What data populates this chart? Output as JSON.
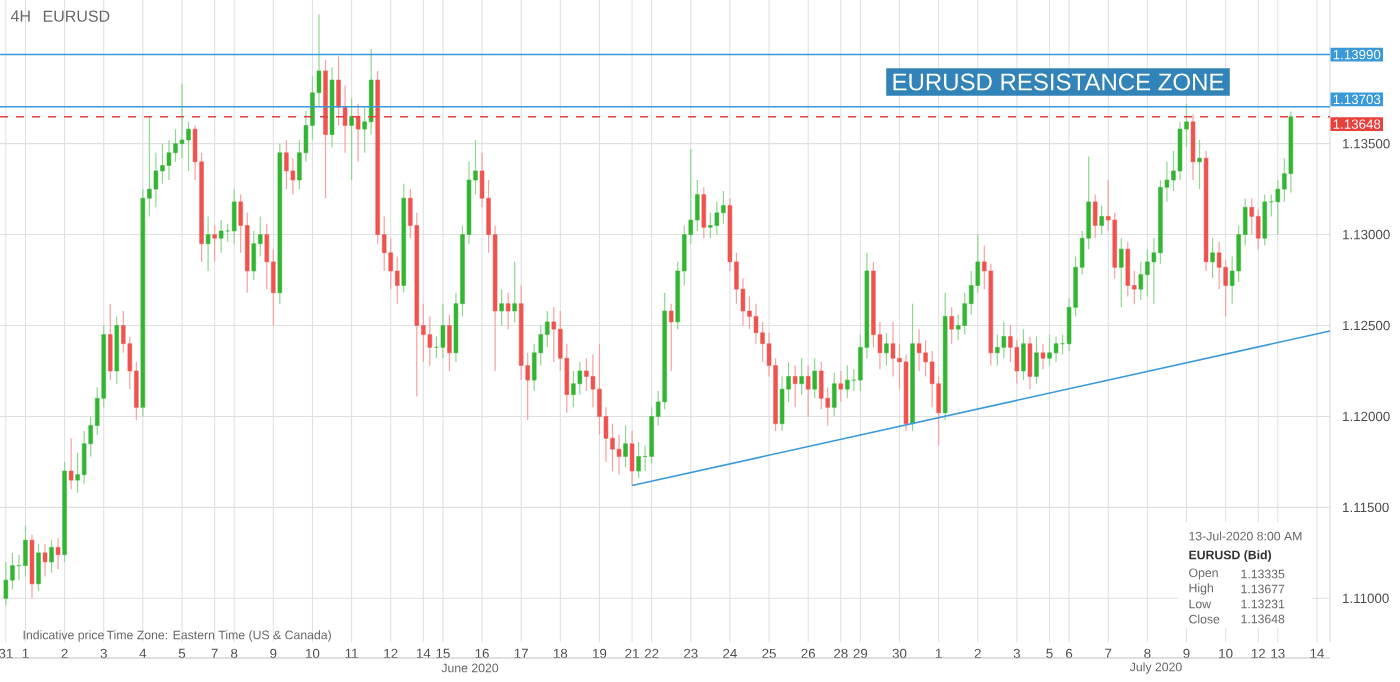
{
  "chart_data": {
    "type": "candlestick",
    "title": "EURUSD",
    "subtitle": "4H",
    "categories": [
      "31",
      null,
      null,
      "1",
      null,
      null,
      null,
      null,
      null,
      "2",
      null,
      null,
      null,
      null,
      null,
      "3",
      null,
      null,
      null,
      null,
      null,
      "4",
      null,
      null,
      null,
      null,
      null,
      "5",
      null,
      null,
      null,
      null,
      "7",
      null,
      null,
      "8",
      null,
      null,
      null,
      null,
      null,
      "9",
      null,
      null,
      null,
      null,
      null,
      "10",
      null,
      null,
      null,
      null,
      null,
      "11",
      null,
      null,
      null,
      null,
      null,
      "12",
      null,
      null,
      null,
      null,
      "14",
      null,
      null,
      "15",
      null,
      null,
      null,
      null,
      null,
      "16",
      null,
      null,
      null,
      null,
      null,
      "17",
      null,
      null,
      null,
      null,
      null,
      "18",
      null,
      null,
      null,
      null,
      null,
      "19",
      null,
      null,
      null,
      null,
      "21",
      null,
      null,
      "22",
      null,
      null,
      null,
      null,
      null,
      "23",
      null,
      null,
      null,
      null,
      null,
      "24",
      null,
      null,
      null,
      null,
      null,
      "25",
      null,
      null,
      null,
      null,
      null,
      "26",
      null,
      null,
      null,
      null,
      "28",
      null,
      null,
      "29",
      null,
      null,
      null,
      null,
      null,
      "30",
      null,
      null,
      null,
      null,
      null,
      "1",
      null,
      null,
      null,
      null,
      null,
      "2",
      null,
      null,
      null,
      null,
      null,
      "3",
      null,
      null,
      null,
      null,
      "5",
      null,
      null,
      "6",
      null,
      null,
      null,
      null,
      null,
      "7",
      null,
      null,
      null,
      null,
      null,
      "8",
      null,
      null,
      null,
      null,
      null,
      "9",
      null,
      null,
      null,
      null,
      null,
      "10",
      null,
      null,
      null,
      null,
      "12",
      null,
      null,
      "13",
      null,
      null,
      null,
      null,
      null,
      "14",
      null,
      null
    ],
    "colors": [
      "#33b533",
      "#33b533",
      "#33b533",
      "#33b533",
      "#ef5350",
      "#33b533",
      "#ef5350",
      "#33b533",
      "#ef5350",
      "#33b533",
      "#ef5350",
      "#33b533",
      "#33b533",
      "#33b533",
      "#33b533",
      "#33b533",
      "#ef5350",
      "#33b533",
      "#ef5350",
      "#ef5350",
      "#ef5350",
      "#33b533",
      "#33b533",
      "#33b533",
      "#33b533",
      "#33b533",
      "#33b533",
      "#33b533",
      "#33b533",
      "#ef5350",
      "#ef5350",
      "#33b533",
      "#ef5350",
      "#33b533",
      "#33b533",
      "#33b533",
      "#ef5350",
      "#ef5350",
      "#33b533",
      "#33b533",
      "#ef5350",
      "#ef5350",
      "#33b533",
      "#ef5350",
      "#ef5350",
      "#33b533",
      "#33b533",
      "#33b533",
      "#33b533",
      "#ef5350",
      "#33b533",
      "#ef5350",
      "#ef5350",
      "#33b533",
      "#ef5350",
      "#33b533",
      "#33b533",
      "#ef5350",
      "#ef5350",
      "#ef5350",
      "#ef5350",
      "#33b533",
      "#ef5350",
      "#ef5350",
      "#ef5350",
      "#ef5350",
      "#33b533",
      "#33b533",
      "#ef5350",
      "#33b533",
      "#33b533",
      "#33b533",
      "#33b533",
      "#ef5350",
      "#ef5350",
      "#ef5350",
      "#33b533",
      "#ef5350",
      "#33b533",
      "#ef5350",
      "#ef5350",
      "#33b533",
      "#33b533",
      "#33b533",
      "#ef5350",
      "#ef5350",
      "#ef5350",
      "#33b533",
      "#33b533",
      "#ef5350",
      "#ef5350",
      "#ef5350",
      "#ef5350",
      "#ef5350",
      "#ef5350",
      "#33b533",
      "#ef5350",
      "#33b533",
      "#33b533",
      "#33b533",
      "#33b533",
      "#33b533",
      "#ef5350",
      "#33b533",
      "#33b533",
      "#33b533",
      "#33b533",
      "#ef5350",
      "#33b533",
      "#33b533",
      "#33b533",
      "#ef5350",
      "#ef5350",
      "#ef5350",
      "#ef5350",
      "#ef5350",
      "#ef5350",
      "#ef5350",
      "#ef5350",
      "#33b533",
      "#33b533",
      "#ef5350",
      "#33b533",
      "#ef5350",
      "#33b533",
      "#ef5350",
      "#ef5350",
      "#33b533",
      "#ef5350",
      "#33b533",
      "#33b533",
      "#33b533",
      "#33b533",
      "#ef5350",
      "#ef5350",
      "#33b533",
      "#ef5350",
      "#ef5350",
      "#ef5350",
      "#33b533",
      "#ef5350",
      "#ef5350",
      "#ef5350",
      "#ef5350",
      "#33b533",
      "#ef5350",
      "#33b533",
      "#33b533",
      "#33b533",
      "#33b533",
      "#ef5350",
      "#ef5350",
      "#33b533",
      "#33b533",
      "#ef5350",
      "#ef5350",
      "#33b533",
      "#ef5350",
      "#33b533",
      "#ef5350",
      "#33b533",
      "#33b533",
      "#33b533",
      "#33b533",
      "#33b533",
      "#33b533",
      "#33b533",
      "#ef5350",
      "#33b533",
      "#ef5350",
      "#ef5350",
      "#33b533",
      "#ef5350",
      "#ef5350",
      "#33b533",
      "#33b533",
      "#33b533",
      "#33b533",
      "#33b533",
      "#33b533",
      "#33b533",
      "#33b533",
      "#ef5350",
      "#33b533",
      "#ef5350",
      "#33b533",
      "#ef5350",
      "#ef5350",
      "#33b533",
      "#33b533",
      "#33b533",
      "#ef5350",
      "#ef5350",
      "#33b533",
      "#33b533",
      "#33b533",
      "#33b533",
      "#33b533",
      null,
      null,
      null,
      null,
      null,
      null
    ],
    "ohlc": [
      [
        1.11,
        1.112,
        1.1096,
        1.111
      ],
      [
        1.111,
        1.1125,
        1.1105,
        1.1118
      ],
      [
        1.1118,
        1.1124,
        1.111,
        1.1118
      ],
      [
        1.1118,
        1.114,
        1.1112,
        1.1132
      ],
      [
        1.1132,
        1.1135,
        1.11,
        1.1108
      ],
      [
        1.1108,
        1.113,
        1.1104,
        1.1125
      ],
      [
        1.1125,
        1.113,
        1.1112,
        1.112
      ],
      [
        1.112,
        1.1132,
        1.1114,
        1.1128
      ],
      [
        1.1128,
        1.1133,
        1.1116,
        1.1124
      ],
      [
        1.1124,
        1.1175,
        1.112,
        1.117
      ],
      [
        1.117,
        1.1188,
        1.116,
        1.1165
      ],
      [
        1.1165,
        1.118,
        1.1158,
        1.1168
      ],
      [
        1.1168,
        1.1192,
        1.1163,
        1.1185
      ],
      [
        1.1185,
        1.12,
        1.1178,
        1.1195
      ],
      [
        1.1195,
        1.1216,
        1.119,
        1.121
      ],
      [
        1.121,
        1.125,
        1.1205,
        1.1245
      ],
      [
        1.1245,
        1.1262,
        1.122,
        1.1225
      ],
      [
        1.1225,
        1.1255,
        1.1218,
        1.125
      ],
      [
        1.125,
        1.1258,
        1.1235,
        1.124
      ],
      [
        1.124,
        1.1244,
        1.1215,
        1.1225
      ],
      [
        1.1225,
        1.123,
        1.1198,
        1.1205
      ],
      [
        1.1205,
        1.1325,
        1.12,
        1.132
      ],
      [
        1.132,
        1.1365,
        1.131,
        1.1325
      ],
      [
        1.1325,
        1.1345,
        1.1315,
        1.1335
      ],
      [
        1.1335,
        1.135,
        1.1328,
        1.1338
      ],
      [
        1.1338,
        1.1352,
        1.133,
        1.1345
      ],
      [
        1.1345,
        1.1358,
        1.134,
        1.135
      ],
      [
        1.135,
        1.1383,
        1.1342,
        1.1352
      ],
      [
        1.1352,
        1.1362,
        1.1335,
        1.1358
      ],
      [
        1.1358,
        1.136,
        1.133,
        1.134
      ],
      [
        1.134,
        1.1345,
        1.1285,
        1.1295
      ],
      [
        1.1295,
        1.131,
        1.128,
        1.13
      ],
      [
        1.13,
        1.1305,
        1.1285,
        1.1298
      ],
      [
        1.1298,
        1.1308,
        1.129,
        1.1302
      ],
      [
        1.1302,
        1.1306,
        1.1296,
        1.1302
      ],
      [
        1.1302,
        1.1325,
        1.1295,
        1.1318
      ],
      [
        1.1318,
        1.1322,
        1.129,
        1.1305
      ],
      [
        1.1305,
        1.1312,
        1.1268,
        1.128
      ],
      [
        1.128,
        1.1302,
        1.1275,
        1.1295
      ],
      [
        1.1295,
        1.131,
        1.1288,
        1.13
      ],
      [
        1.13,
        1.1306,
        1.127,
        1.1285
      ],
      [
        1.1285,
        1.1292,
        1.125,
        1.1268
      ],
      [
        1.1268,
        1.135,
        1.1262,
        1.1345
      ],
      [
        1.1345,
        1.1352,
        1.1325,
        1.1335
      ],
      [
        1.1335,
        1.1342,
        1.1322,
        1.133
      ],
      [
        1.133,
        1.1352,
        1.1325,
        1.1345
      ],
      [
        1.1345,
        1.1368,
        1.134,
        1.136
      ],
      [
        1.136,
        1.1387,
        1.1352,
        1.1378
      ],
      [
        1.1378,
        1.1421,
        1.137,
        1.139
      ],
      [
        1.139,
        1.1396,
        1.132,
        1.1355
      ],
      [
        1.1355,
        1.1392,
        1.1348,
        1.1385
      ],
      [
        1.1385,
        1.1398,
        1.136,
        1.137
      ],
      [
        1.137,
        1.1382,
        1.1345,
        1.136
      ],
      [
        1.136,
        1.1375,
        1.133,
        1.1365
      ],
      [
        1.1365,
        1.1372,
        1.134,
        1.1358
      ],
      [
        1.1358,
        1.137,
        1.1345,
        1.1362
      ],
      [
        1.1362,
        1.1402,
        1.1355,
        1.1385
      ],
      [
        1.1385,
        1.139,
        1.1295,
        1.13
      ],
      [
        1.13,
        1.131,
        1.128,
        1.129
      ],
      [
        1.129,
        1.1298,
        1.127,
        1.128
      ],
      [
        1.128,
        1.1288,
        1.1262,
        1.1272
      ],
      [
        1.1272,
        1.1328,
        1.1268,
        1.132
      ],
      [
        1.132,
        1.1325,
        1.1298,
        1.1305
      ],
      [
        1.1305,
        1.1312,
        1.1211,
        1.125
      ],
      [
        1.125,
        1.1262,
        1.123,
        1.1245
      ],
      [
        1.1245,
        1.1255,
        1.1228,
        1.1238
      ],
      [
        1.1238,
        1.1244,
        1.1232,
        1.1238
      ],
      [
        1.1238,
        1.1262,
        1.1232,
        1.125
      ],
      [
        1.125,
        1.1256,
        1.1225,
        1.1235
      ],
      [
        1.1235,
        1.1268,
        1.123,
        1.1262
      ],
      [
        1.1262,
        1.1305,
        1.1255,
        1.13
      ],
      [
        1.13,
        1.134,
        1.1295,
        1.133
      ],
      [
        1.133,
        1.1352,
        1.1322,
        1.1335
      ],
      [
        1.1335,
        1.1345,
        1.1315,
        1.132
      ],
      [
        1.132,
        1.133,
        1.129,
        1.13
      ],
      [
        1.13,
        1.1305,
        1.1225,
        1.1258
      ],
      [
        1.1258,
        1.127,
        1.125,
        1.1262
      ],
      [
        1.1262,
        1.1268,
        1.1248,
        1.1258
      ],
      [
        1.1258,
        1.1285,
        1.1252,
        1.1262
      ],
      [
        1.1262,
        1.1272,
        1.122,
        1.1228
      ],
      [
        1.1228,
        1.1235,
        1.1198,
        1.122
      ],
      [
        1.122,
        1.124,
        1.1214,
        1.1235
      ],
      [
        1.1235,
        1.125,
        1.1228,
        1.1245
      ],
      [
        1.1245,
        1.1258,
        1.1238,
        1.1252
      ],
      [
        1.1252,
        1.126,
        1.123,
        1.1248
      ],
      [
        1.1248,
        1.1258,
        1.1225,
        1.1232
      ],
      [
        1.1232,
        1.124,
        1.1202,
        1.1212
      ],
      [
        1.1212,
        1.1225,
        1.1205,
        1.1218
      ],
      [
        1.1218,
        1.123,
        1.1212,
        1.1225
      ],
      [
        1.1225,
        1.1232,
        1.1214,
        1.1222
      ],
      [
        1.1222,
        1.1234,
        1.1205,
        1.1215
      ],
      [
        1.1215,
        1.124,
        1.119,
        1.12
      ],
      [
        1.12,
        1.1205,
        1.1175,
        1.1188
      ],
      [
        1.1188,
        1.1196,
        1.117,
        1.1182
      ],
      [
        1.1182,
        1.119,
        1.1168,
        1.1178
      ],
      [
        1.1178,
        1.1195,
        1.1172,
        1.1185
      ],
      [
        1.1185,
        1.1192,
        1.1162,
        1.117
      ],
      [
        1.117,
        1.1186,
        1.1166,
        1.1178
      ],
      [
        1.1178,
        1.1184,
        1.117,
        1.1178
      ],
      [
        1.1178,
        1.1205,
        1.1174,
        1.12
      ],
      [
        1.12,
        1.1214,
        1.1195,
        1.1208
      ],
      [
        1.1208,
        1.1268,
        1.1204,
        1.1258
      ],
      [
        1.1258,
        1.1262,
        1.1225,
        1.1252
      ],
      [
        1.1252,
        1.1285,
        1.1248,
        1.128
      ],
      [
        1.128,
        1.1305,
        1.1272,
        1.13
      ],
      [
        1.13,
        1.1347,
        1.1295,
        1.1308
      ],
      [
        1.1308,
        1.133,
        1.1302,
        1.1322
      ],
      [
        1.1322,
        1.1326,
        1.1298,
        1.1304
      ],
      [
        1.1304,
        1.1312,
        1.1298,
        1.1305
      ],
      [
        1.1305,
        1.1318,
        1.13,
        1.1312
      ],
      [
        1.1312,
        1.1324,
        1.1306,
        1.1316
      ],
      [
        1.1316,
        1.132,
        1.128,
        1.1285
      ],
      [
        1.1285,
        1.129,
        1.1262,
        1.127
      ],
      [
        1.127,
        1.1276,
        1.125,
        1.1258
      ],
      [
        1.1258,
        1.1266,
        1.1248,
        1.1255
      ],
      [
        1.1255,
        1.1262,
        1.124,
        1.1246
      ],
      [
        1.1246,
        1.1252,
        1.123,
        1.124
      ],
      [
        1.124,
        1.1246,
        1.1222,
        1.1228
      ],
      [
        1.1228,
        1.1232,
        1.1192,
        1.1196
      ],
      [
        1.1196,
        1.1222,
        1.1192,
        1.1215
      ],
      [
        1.1215,
        1.123,
        1.1208,
        1.1222
      ],
      [
        1.1222,
        1.1228,
        1.1205,
        1.1218
      ],
      [
        1.1218,
        1.1232,
        1.1212,
        1.1222
      ],
      [
        1.1222,
        1.1228,
        1.12,
        1.1215
      ],
      [
        1.1215,
        1.1232,
        1.121,
        1.1225
      ],
      [
        1.1225,
        1.123,
        1.1204,
        1.121
      ],
      [
        1.121,
        1.1216,
        1.1195,
        1.1205
      ],
      [
        1.1205,
        1.1224,
        1.12,
        1.1218
      ],
      [
        1.1218,
        1.1225,
        1.1208,
        1.1215
      ],
      [
        1.1215,
        1.1228,
        1.121,
        1.122
      ],
      [
        1.122,
        1.1226,
        1.1214,
        1.122
      ],
      [
        1.122,
        1.1245,
        1.1214,
        1.1238
      ],
      [
        1.1238,
        1.129,
        1.1232,
        1.128
      ],
      [
        1.128,
        1.1285,
        1.1238,
        1.1245
      ],
      [
        1.1245,
        1.1252,
        1.1226,
        1.1235
      ],
      [
        1.1235,
        1.1246,
        1.1228,
        1.124
      ],
      [
        1.124,
        1.1252,
        1.1222,
        1.1232
      ],
      [
        1.1232,
        1.124,
        1.1215,
        1.123
      ],
      [
        1.123,
        1.1234,
        1.1192,
        1.1196
      ],
      [
        1.1196,
        1.1262,
        1.1192,
        1.124
      ],
      [
        1.124,
        1.1248,
        1.1225,
        1.1235
      ],
      [
        1.1235,
        1.1242,
        1.1222,
        1.123
      ],
      [
        1.123,
        1.1236,
        1.1205,
        1.1218
      ],
      [
        1.1218,
        1.1222,
        1.1184,
        1.1202
      ],
      [
        1.1202,
        1.1268,
        1.1198,
        1.1255
      ],
      [
        1.1255,
        1.126,
        1.124,
        1.1248
      ],
      [
        1.1248,
        1.1256,
        1.1242,
        1.125
      ],
      [
        1.125,
        1.1268,
        1.1245,
        1.1262
      ],
      [
        1.1262,
        1.128,
        1.1256,
        1.1272
      ],
      [
        1.1272,
        1.13,
        1.1268,
        1.1285
      ],
      [
        1.1285,
        1.1294,
        1.127,
        1.128
      ],
      [
        1.128,
        1.1284,
        1.1228,
        1.1235
      ],
      [
        1.1235,
        1.1245,
        1.1228,
        1.1238
      ],
      [
        1.1238,
        1.1252,
        1.1232,
        1.1244
      ],
      [
        1.1244,
        1.125,
        1.123,
        1.1238
      ],
      [
        1.1238,
        1.1242,
        1.1218,
        1.1225
      ],
      [
        1.1225,
        1.1248,
        1.122,
        1.124
      ],
      [
        1.124,
        1.1244,
        1.1215,
        1.1222
      ],
      [
        1.1222,
        1.1244,
        1.1218,
        1.1235
      ],
      [
        1.1235,
        1.124,
        1.1226,
        1.1232
      ],
      [
        1.1232,
        1.1245,
        1.1228,
        1.1235
      ],
      [
        1.1235,
        1.1244,
        1.123,
        1.124
      ],
      [
        1.124,
        1.1245,
        1.1234,
        1.124
      ],
      [
        1.124,
        1.1265,
        1.1236,
        1.126
      ],
      [
        1.126,
        1.1288,
        1.1255,
        1.1282
      ],
      [
        1.1282,
        1.1302,
        1.1278,
        1.1298
      ],
      [
        1.1298,
        1.1343,
        1.1292,
        1.1318
      ],
      [
        1.1318,
        1.1322,
        1.1298,
        1.1305
      ],
      [
        1.1305,
        1.1316,
        1.13,
        1.131
      ],
      [
        1.131,
        1.133,
        1.1302,
        1.1308
      ],
      [
        1.1308,
        1.1312,
        1.1276,
        1.1282
      ],
      [
        1.1282,
        1.1298,
        1.126,
        1.1292
      ],
      [
        1.1292,
        1.1296,
        1.1266,
        1.1272
      ],
      [
        1.1272,
        1.128,
        1.1262,
        1.127
      ],
      [
        1.127,
        1.1285,
        1.1264,
        1.1278
      ],
      [
        1.1278,
        1.1292,
        1.1266,
        1.1285
      ],
      [
        1.1285,
        1.1298,
        1.1262,
        1.129
      ],
      [
        1.129,
        1.133,
        1.1284,
        1.1326
      ],
      [
        1.1326,
        1.134,
        1.1318,
        1.133
      ],
      [
        1.133,
        1.1346,
        1.1324,
        1.1335
      ],
      [
        1.1335,
        1.1362,
        1.133,
        1.1358
      ],
      [
        1.1358,
        1.1372,
        1.1348,
        1.1362
      ],
      [
        1.1362,
        1.1366,
        1.133,
        1.134
      ],
      [
        1.134,
        1.1352,
        1.1325,
        1.1342
      ],
      [
        1.1342,
        1.1346,
        1.128,
        1.1285
      ],
      [
        1.1285,
        1.1298,
        1.1276,
        1.129
      ],
      [
        1.129,
        1.1296,
        1.127,
        1.1282
      ],
      [
        1.1282,
        1.1286,
        1.1255,
        1.1272
      ],
      [
        1.1272,
        1.1288,
        1.1262,
        1.128
      ],
      [
        1.128,
        1.1305,
        1.1274,
        1.13
      ],
      [
        1.13,
        1.132,
        1.1294,
        1.1315
      ],
      [
        1.1315,
        1.132,
        1.13,
        1.131
      ],
      [
        1.131,
        1.1314,
        1.1292,
        1.1298
      ],
      [
        1.1298,
        1.1322,
        1.1294,
        1.1318
      ],
      [
        1.1318,
        1.1322,
        1.131,
        1.1318
      ],
      [
        1.1318,
        1.133,
        1.13,
        1.1325
      ],
      [
        1.1325,
        1.1342,
        1.1318,
        1.13335
      ],
      [
        1.13335,
        1.13677,
        1.13231,
        1.13648
      ],
      null,
      null,
      null,
      null,
      null,
      null
    ],
    "series": [
      {
        "type": "line",
        "color": "#3a9ad9",
        "values": [
          null,
          null,
          null,
          null,
          null,
          null,
          null,
          null,
          null,
          null,
          null,
          null,
          null,
          null,
          null,
          null,
          null,
          null,
          null,
          null,
          null,
          null,
          null,
          null,
          null,
          null,
          null,
          null,
          null,
          null,
          null,
          null,
          null,
          null,
          null,
          null,
          null,
          null,
          null,
          null,
          null,
          null,
          null,
          null,
          null,
          null,
          null,
          null,
          null,
          null,
          null,
          null,
          null,
          null,
          null,
          null,
          null,
          null,
          null,
          null,
          null,
          null,
          null,
          null,
          null,
          null,
          null,
          null,
          null,
          null,
          null,
          null,
          null,
          null,
          null,
          null,
          null,
          null,
          null,
          null,
          null,
          null,
          null,
          null,
          null,
          null,
          null,
          null,
          null,
          null,
          null,
          null,
          null,
          null,
          null,
          null,
          1.1162,
          null,
          null,
          null,
          null,
          null,
          null,
          null,
          null,
          null,
          null,
          null,
          null,
          null,
          null,
          null,
          null,
          null,
          null,
          null,
          null,
          null,
          null,
          null,
          null,
          null,
          null,
          null,
          null,
          null,
          null,
          null,
          null,
          null,
          null,
          null,
          null,
          null,
          null,
          null,
          null,
          null,
          null,
          null,
          null,
          null,
          null,
          null,
          null,
          null,
          null,
          null,
          null,
          null,
          null,
          null,
          null,
          null,
          null,
          null,
          null,
          null,
          null,
          null,
          null,
          null,
          null,
          null,
          null,
          null,
          null,
          null,
          null,
          null,
          null,
          null,
          null,
          null,
          null,
          null,
          null,
          null,
          null,
          null,
          null,
          null,
          null,
          null,
          null,
          null,
          null,
          null,
          null,
          null,
          null,
          null,
          null,
          null,
          null,
          null,
          null,
          null,
          null,
          null,
          null,
          null,
          null,
          1.1247
        ]
      }
    ],
    "ylim": [
      1.1076,
      1.1429
    ],
    "yticks": [
      {
        "value": 1.11,
        "label": "1.11000"
      },
      {
        "value": 1.115,
        "label": "1.11500"
      },
      {
        "value": 1.12,
        "label": "1.12000"
      },
      {
        "value": 1.125,
        "label": "1.12500"
      },
      {
        "value": 1.13,
        "label": "1.13000"
      },
      {
        "value": 1.135,
        "label": "1.13500"
      }
    ],
    "grid": true,
    "ref_lines": [
      {
        "axis": "y",
        "value": 1.1399,
        "label": "1.13990",
        "color": "#3a9ad9"
      },
      {
        "axis": "y",
        "value": 1.13703,
        "label": "1.13703",
        "color": "#3a9ad9"
      },
      {
        "axis": "y",
        "value": 1.13648,
        "label": "1.13648",
        "color": "#e8413c",
        "line_style": "dashed"
      }
    ],
    "annotations": [
      "EURUSD RESISTANCE ZONE",
      "Indicative price",
      "Time Zone: Eastern Time (US & Canada)",
      "June 2020",
      "July 2020",
      "13-Jul-2020 8:00 AM",
      "EURUSD (Bid)",
      "Open",
      "1.13335",
      "High",
      "1.13677",
      "Low",
      "1.13231",
      "Close",
      "1.13648"
    ]
  }
}
